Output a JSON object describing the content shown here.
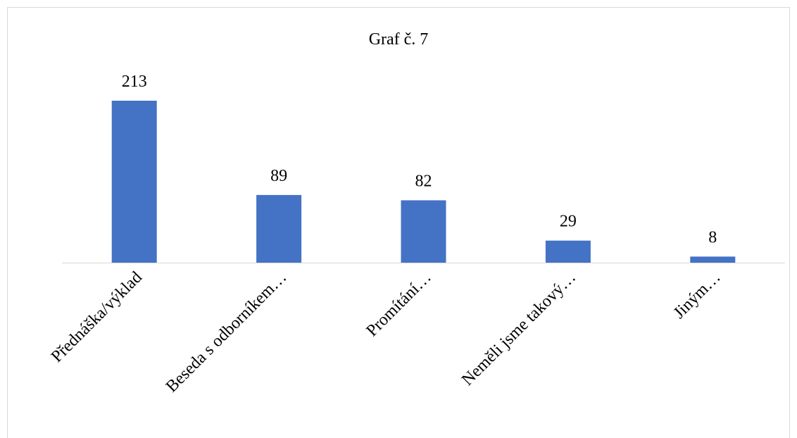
{
  "chart_data": {
    "type": "bar",
    "title": "Graf č. 7",
    "categories": [
      "Přednáška/výklad",
      "Beseda s odborníkem…",
      "Promítání…",
      "Neměli jsme takový…",
      "Jiným…"
    ],
    "values": [
      213,
      89,
      82,
      29,
      8
    ],
    "color": "#4472c4"
  }
}
